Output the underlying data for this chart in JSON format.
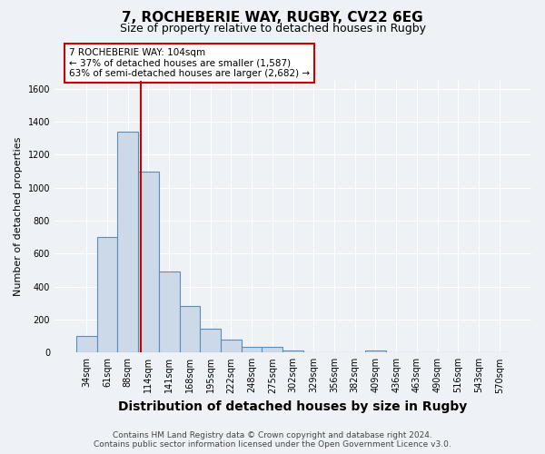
{
  "title": "7, ROCHEBERIE WAY, RUGBY, CV22 6EG",
  "subtitle": "Size of property relative to detached houses in Rugby",
  "xlabel": "Distribution of detached houses by size in Rugby",
  "ylabel": "Number of detached properties",
  "footer_line1": "Contains HM Land Registry data © Crown copyright and database right 2024.",
  "footer_line2": "Contains public sector information licensed under the Open Government Licence v3.0.",
  "categories": [
    "34sqm",
    "61sqm",
    "88sqm",
    "114sqm",
    "141sqm",
    "168sqm",
    "195sqm",
    "222sqm",
    "248sqm",
    "275sqm",
    "302sqm",
    "329sqm",
    "356sqm",
    "382sqm",
    "409sqm",
    "436sqm",
    "463sqm",
    "490sqm",
    "516sqm",
    "543sqm",
    "570sqm"
  ],
  "values": [
    100,
    700,
    1340,
    1100,
    490,
    285,
    145,
    80,
    35,
    35,
    15,
    0,
    0,
    0,
    13,
    0,
    0,
    0,
    0,
    0,
    0
  ],
  "bar_color": "#ccd9e8",
  "bar_edge_color": "#5b8db8",
  "bar_edge_width": 0.8,
  "red_line_x": 2.62,
  "red_line_color": "#cc0000",
  "ylim": [
    0,
    1650
  ],
  "yticks": [
    0,
    200,
    400,
    600,
    800,
    1000,
    1200,
    1400,
    1600
  ],
  "annotation_text": "7 ROCHEBERIE WAY: 104sqm\n← 37% of detached houses are smaller (1,587)\n63% of semi-detached houses are larger (2,682) →",
  "annotation_box_facecolor": "#ffffff",
  "annotation_box_edgecolor": "#cc0000",
  "bg_color": "#eef2f7",
  "grid_color": "#ffffff",
  "title_fontsize": 11,
  "subtitle_fontsize": 9,
  "ylabel_fontsize": 8,
  "xlabel_fontsize": 10,
  "tick_fontsize": 7,
  "annotation_fontsize": 7.5,
  "footer_fontsize": 6.5
}
